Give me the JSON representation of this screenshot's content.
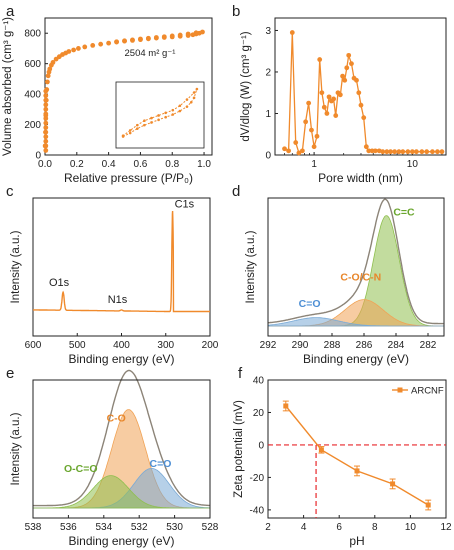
{
  "colors": {
    "main": "#f08a2c",
    "red": "#e8262a",
    "axis": "#222222",
    "envelope": "#8c8478",
    "fill_green": "#8fbf4e",
    "fill_orange": "#f0a356",
    "fill_blue": "#7aaad6",
    "label_green": "#6aa62e",
    "label_orange": "#e8862a",
    "label_blue": "#4e8fd4"
  },
  "chart_data": [
    {
      "panel": "a",
      "type": "scatter",
      "xlabel": "Relative pressure (P/P₀)",
      "ylabel": "Volume absorbed (cm³ g⁻¹)",
      "xlim": [
        0,
        1.05
      ],
      "ylim": [
        0,
        900
      ],
      "xticks": [
        0.0,
        0.2,
        0.4,
        0.6,
        0.8,
        1.0
      ],
      "xtick_labels": [
        "0.0",
        "0.2",
        "0.4",
        "0.6",
        "0.8",
        "1.0"
      ],
      "yticks": [
        0,
        200,
        400,
        600,
        800
      ],
      "ytick_labels": [
        "0",
        "200",
        "400",
        "600",
        "800"
      ],
      "annotation": "2504 m² g⁻¹",
      "x": [
        0.001,
        0.003,
        0.005,
        0.008,
        0.011,
        0.015,
        0.02,
        0.025,
        0.03,
        0.04,
        0.05,
        0.07,
        0.09,
        0.11,
        0.13,
        0.15,
        0.18,
        0.21,
        0.25,
        0.3,
        0.35,
        0.4,
        0.45,
        0.5,
        0.55,
        0.6,
        0.65,
        0.7,
        0.75,
        0.8,
        0.85,
        0.9,
        0.93,
        0.95,
        0.97,
        0.99,
        0.95,
        0.9,
        0.85,
        0.8,
        0.75,
        0.7,
        0.65,
        0.6,
        0.55,
        0.5,
        0.45
      ],
      "y": [
        60,
        150,
        260,
        360,
        430,
        480,
        520,
        545,
        565,
        590,
        608,
        630,
        646,
        660,
        670,
        680,
        690,
        700,
        710,
        720,
        728,
        735,
        742,
        748,
        753,
        758,
        763,
        768,
        772,
        776,
        780,
        785,
        790,
        795,
        800,
        808,
        803,
        795,
        788,
        782,
        777,
        772,
        767,
        762,
        756,
        750,
        744
      ],
      "inset_x": [
        0.45,
        0.5,
        0.55,
        0.6,
        0.65,
        0.7,
        0.75,
        0.8,
        0.85,
        0.9,
        0.93,
        0.95,
        0.97,
        0.95,
        0.9,
        0.85,
        0.8,
        0.75,
        0.7,
        0.65,
        0.6,
        0.55,
        0.5,
        0.45
      ],
      "inset_y": [
        718,
        722,
        727,
        731,
        734,
        737,
        740,
        743,
        747,
        752,
        757,
        762,
        772,
        768,
        760,
        753,
        748,
        745,
        742,
        739,
        736,
        731,
        725,
        719
      ]
    },
    {
      "panel": "b",
      "type": "line",
      "xlabel": "Pore width (nm)",
      "ylabel": "dV/dlog (W) (cm³ g⁻¹)",
      "xscale": "log",
      "xlim": [
        0.4,
        22
      ],
      "ylim": [
        0,
        3.3
      ],
      "xticks": [
        1,
        10
      ],
      "xtick_labels": [
        "1",
        "10"
      ],
      "yticks": [
        0,
        1,
        2,
        3
      ],
      "ytick_labels": [
        "0",
        "1",
        "2",
        "3"
      ],
      "x": [
        0.5,
        0.55,
        0.6,
        0.65,
        0.7,
        0.76,
        0.82,
        0.88,
        0.94,
        1.0,
        1.07,
        1.14,
        1.2,
        1.27,
        1.35,
        1.42,
        1.5,
        1.58,
        1.66,
        1.75,
        1.85,
        1.95,
        2.05,
        2.15,
        2.25,
        2.4,
        2.55,
        2.7,
        2.85,
        3.0,
        3.2,
        3.4,
        3.6,
        3.9,
        4.2,
        4.6,
        5.0,
        5.5,
        6.0,
        6.6,
        7.3,
        8.0,
        9.0,
        10.0,
        11.0,
        12.5,
        14.0,
        16.0,
        18.0,
        20.0
      ],
      "y": [
        0.15,
        0.1,
        2.95,
        0.3,
        0.05,
        0.1,
        0.8,
        1.25,
        0.6,
        0.2,
        0.45,
        2.3,
        1.5,
        1.15,
        1.0,
        1.4,
        1.3,
        1.35,
        0.95,
        1.5,
        1.45,
        1.9,
        1.8,
        2.1,
        2.4,
        2.2,
        1.85,
        1.8,
        1.5,
        1.2,
        0.9,
        0.2,
        0.1,
        0.1,
        0.1,
        0.1,
        0.08,
        0.08,
        0.08,
        0.08,
        0.08,
        0.08,
        0.08,
        0.08,
        0.08,
        0.08,
        0.08,
        0.08,
        0.08,
        0.08
      ]
    },
    {
      "panel": "c",
      "type": "line",
      "xlabel": "Binding energy (eV)",
      "ylabel": "Intensity (a.u.)",
      "xlim": [
        600,
        200
      ],
      "xticks": [
        600,
        500,
        400,
        300,
        200
      ],
      "xtick_labels": [
        "600",
        "500",
        "400",
        "300",
        "200"
      ],
      "peak_labels": [
        "O1s",
        "N1s",
        "C1s"
      ],
      "peaks": [
        {
          "label": "O1s",
          "x": 532,
          "height": 0.17
        },
        {
          "label": "N1s",
          "x": 400,
          "height": 0.01
        },
        {
          "label": "C1s",
          "x": 284.6,
          "height": 0.95
        }
      ]
    },
    {
      "panel": "d",
      "type": "area",
      "xlabel": "Binding energy (eV)",
      "ylabel": "Intensity (a.u.)",
      "xlim": [
        292,
        281
      ],
      "xticks": [
        292,
        290,
        288,
        286,
        284,
        282
      ],
      "xtick_labels": [
        "292",
        "290",
        "288",
        "286",
        "284",
        "282"
      ],
      "components": [
        {
          "label": "C=C",
          "center": 284.6,
          "width": 0.8,
          "height": 0.92,
          "color": "#8fbf4e",
          "label_color": "#6aa62e"
        },
        {
          "label": "C-O/C-N",
          "center": 286.0,
          "width": 1.2,
          "height": 0.22,
          "color": "#f0a356",
          "label_color": "#e8862a"
        },
        {
          "label": "C=O",
          "center": 289.0,
          "width": 1.4,
          "height": 0.07,
          "color": "#7aaad6",
          "label_color": "#4e8fd4"
        }
      ]
    },
    {
      "panel": "e",
      "type": "area",
      "xlabel": "Binding energy (eV)",
      "ylabel": "Intensity (a.u.)",
      "xlim": [
        538,
        528
      ],
      "xticks": [
        538,
        536,
        534,
        532,
        530,
        528
      ],
      "xtick_labels": [
        "538",
        "536",
        "534",
        "532",
        "530",
        "528"
      ],
      "components": [
        {
          "label": "C-O",
          "center": 532.6,
          "width": 0.95,
          "height": 0.82,
          "color": "#f0a356",
          "label_color": "#e8862a"
        },
        {
          "label": "C=O",
          "center": 531.3,
          "width": 1.0,
          "height": 0.33,
          "color": "#7aaad6",
          "label_color": "#4e8fd4"
        },
        {
          "label": "O-C=O",
          "center": 533.6,
          "width": 1.0,
          "height": 0.27,
          "color": "#8fbf4e",
          "label_color": "#6aa62e"
        }
      ]
    },
    {
      "panel": "f",
      "type": "line",
      "xlabel": "pH",
      "ylabel": "Zeta potential (mV)",
      "xlim": [
        2,
        12
      ],
      "ylim": [
        -45,
        40
      ],
      "xticks": [
        2,
        4,
        6,
        8,
        10,
        12
      ],
      "xtick_labels": [
        "2",
        "4",
        "6",
        "8",
        "10",
        "12"
      ],
      "yticks": [
        40,
        20,
        0,
        -20,
        -40
      ],
      "ytick_labels": [
        "40",
        "20",
        "0",
        "-20",
        "-40"
      ],
      "series": [
        {
          "name": "ARCNF",
          "x": [
            3,
            5,
            7,
            9,
            11
          ],
          "y": [
            24,
            -3,
            -16,
            -24,
            -37
          ],
          "err": [
            3,
            2,
            3,
            3,
            3
          ]
        }
      ],
      "reference_x": 4.7,
      "reference_y": 0
    }
  ]
}
